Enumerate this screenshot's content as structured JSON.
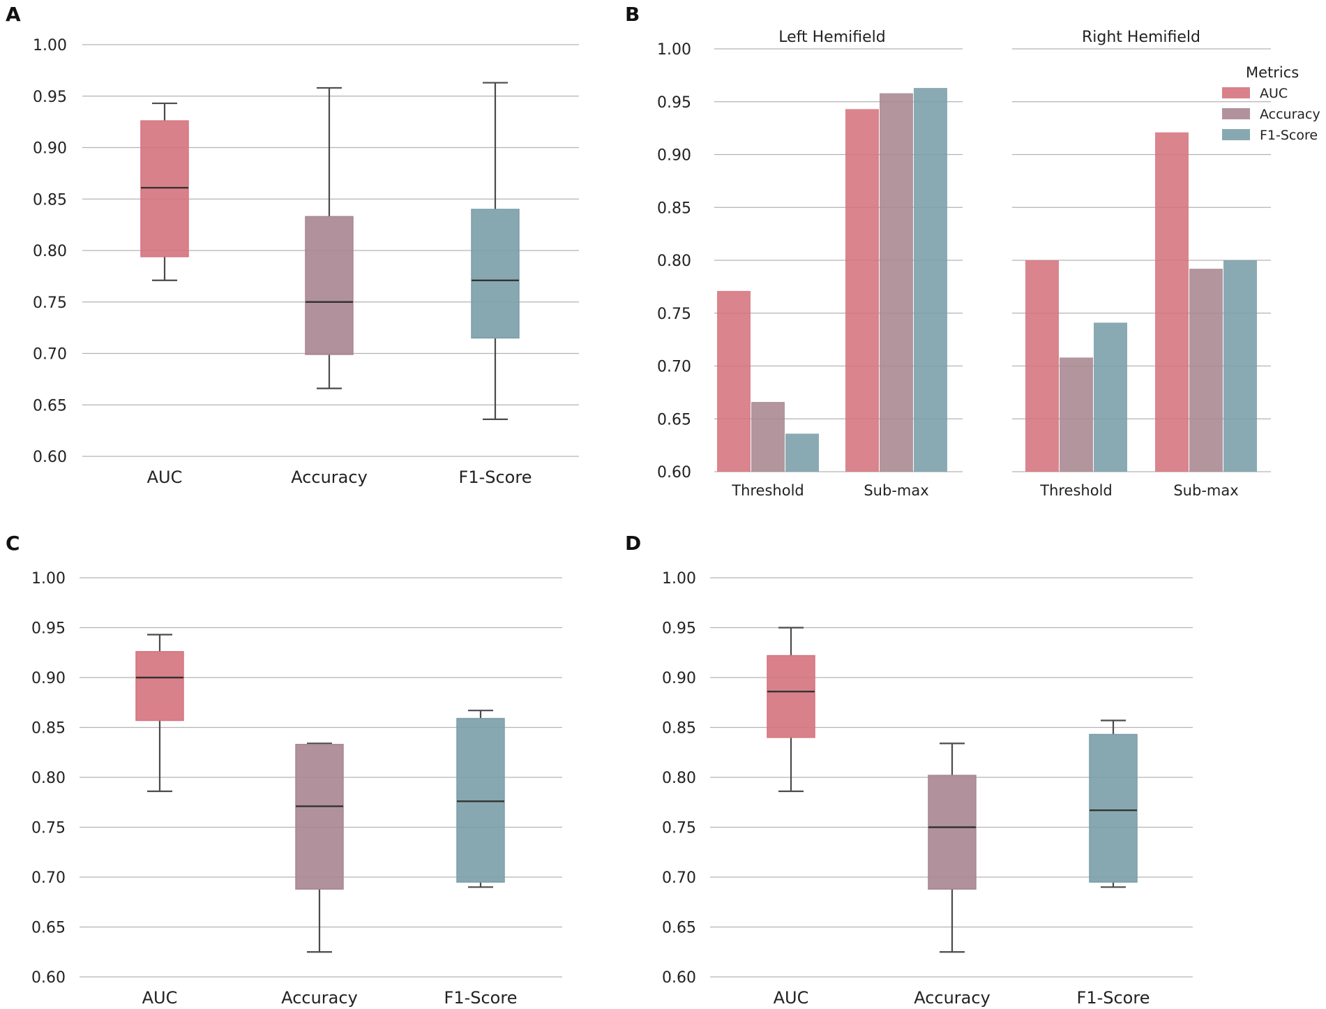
{
  "colors": {
    "auc": "#d5737e",
    "accuracy": "#a98691",
    "f1": "#7a9ea8"
  },
  "panels": [
    {
      "id": "A",
      "letter": "A",
      "type": "box",
      "ylim": [
        0.6,
        1.0
      ],
      "yticks": [
        "0.60",
        "0.65",
        "0.70",
        "0.75",
        "0.80",
        "0.85",
        "0.90",
        "0.95",
        "1.00"
      ],
      "yvalues": [
        0.6,
        0.65,
        0.7,
        0.75,
        0.8,
        0.85,
        0.9,
        0.95,
        1.0
      ],
      "categories": [
        "AUC",
        "Accuracy",
        "F1-Score"
      ],
      "boxes": [
        {
          "name": "AUC",
          "color_key": "auc",
          "whislo": 0.771,
          "q1": 0.794,
          "med": 0.861,
          "q3": 0.926,
          "whishi": 0.943
        },
        {
          "name": "Accuracy",
          "color_key": "accuracy",
          "whislo": 0.666,
          "q1": 0.699,
          "med": 0.75,
          "q3": 0.833,
          "whishi": 0.958
        },
        {
          "name": "F1-Score",
          "color_key": "f1",
          "whislo": 0.636,
          "q1": 0.715,
          "med": 0.771,
          "q3": 0.84,
          "whishi": 0.963
        }
      ]
    },
    {
      "id": "C",
      "letter": "C",
      "type": "box",
      "ylim": [
        0.6,
        1.0
      ],
      "yticks": [
        "0.60",
        "0.65",
        "0.70",
        "0.75",
        "0.80",
        "0.85",
        "0.90",
        "0.95",
        "1.00"
      ],
      "yvalues": [
        0.6,
        0.65,
        0.7,
        0.75,
        0.8,
        0.85,
        0.9,
        0.95,
        1.0
      ],
      "categories": [
        "AUC",
        "Accuracy",
        "F1-Score"
      ],
      "boxes": [
        {
          "name": "AUC",
          "color_key": "auc",
          "whislo": 0.786,
          "q1": 0.857,
          "med": 0.9,
          "q3": 0.926,
          "whishi": 0.943
        },
        {
          "name": "Accuracy",
          "color_key": "accuracy",
          "whislo": 0.625,
          "q1": 0.688,
          "med": 0.771,
          "q3": 0.833,
          "whishi": 0.834
        },
        {
          "name": "F1-Score",
          "color_key": "f1",
          "whislo": 0.69,
          "q1": 0.695,
          "med": 0.776,
          "q3": 0.859,
          "whishi": 0.867
        }
      ]
    },
    {
      "id": "D",
      "letter": "D",
      "type": "box",
      "ylim": [
        0.6,
        1.0
      ],
      "yticks": [
        "0.60",
        "0.65",
        "0.70",
        "0.75",
        "0.80",
        "0.85",
        "0.90",
        "0.95",
        "1.00"
      ],
      "yvalues": [
        0.6,
        0.65,
        0.7,
        0.75,
        0.8,
        0.85,
        0.9,
        0.95,
        1.0
      ],
      "categories": [
        "AUC",
        "Accuracy",
        "F1-Score"
      ],
      "boxes": [
        {
          "name": "AUC",
          "color_key": "auc",
          "whislo": 0.786,
          "q1": 0.84,
          "med": 0.886,
          "q3": 0.922,
          "whishi": 0.95
        },
        {
          "name": "Accuracy",
          "color_key": "accuracy",
          "whislo": 0.625,
          "q1": 0.688,
          "med": 0.75,
          "q3": 0.802,
          "whishi": 0.834
        },
        {
          "name": "F1-Score",
          "color_key": "f1",
          "whislo": 0.69,
          "q1": 0.695,
          "med": 0.767,
          "q3": 0.843,
          "whishi": 0.857
        }
      ]
    }
  ],
  "panel_b": {
    "letter": "B",
    "ylim": [
      0.6,
      1.0
    ],
    "yticks": [
      "0.60",
      "0.65",
      "0.70",
      "0.75",
      "0.80",
      "0.85",
      "0.90",
      "0.95",
      "1.00"
    ],
    "yvalues": [
      0.6,
      0.65,
      0.7,
      0.75,
      0.8,
      0.85,
      0.9,
      0.95,
      1.0
    ],
    "legend": {
      "title": "Metrics",
      "entries": [
        "AUC",
        "Accuracy",
        "F1-Score"
      ]
    },
    "facets": [
      {
        "title": "Left Hemifield",
        "groups": [
          {
            "label": "Threshold",
            "values": [
              0.771,
              0.666,
              0.636
            ]
          },
          {
            "label": "Sub-max",
            "values": [
              0.943,
              0.958,
              0.963
            ]
          }
        ]
      },
      {
        "title": "Right Hemifield",
        "groups": [
          {
            "label": "Threshold",
            "values": [
              0.8,
              0.708,
              0.741
            ]
          },
          {
            "label": "Sub-max",
            "values": [
              0.921,
              0.792,
              0.8
            ]
          }
        ]
      }
    ]
  },
  "chart_data": [
    {
      "type": "box",
      "panel": "A",
      "categories": [
        "AUC",
        "Accuracy",
        "F1-Score"
      ],
      "ylim": [
        0.6,
        1.0
      ],
      "series": [
        {
          "name": "AUC",
          "whislo": 0.771,
          "q1": 0.794,
          "med": 0.861,
          "q3": 0.926,
          "whishi": 0.943
        },
        {
          "name": "Accuracy",
          "whislo": 0.666,
          "q1": 0.699,
          "med": 0.75,
          "q3": 0.833,
          "whishi": 0.958
        },
        {
          "name": "F1-Score",
          "whislo": 0.636,
          "q1": 0.715,
          "med": 0.771,
          "q3": 0.84,
          "whishi": 0.963
        }
      ]
    },
    {
      "type": "bar",
      "panel": "B",
      "facets": [
        "Left Hemifield",
        "Right Hemifield"
      ],
      "categories": [
        "Threshold",
        "Sub-max"
      ],
      "ylim": [
        0.6,
        1.0
      ],
      "legend_title": "Metrics",
      "series": [
        {
          "name": "AUC",
          "left": [
            0.771,
            0.943
          ],
          "right": [
            0.8,
            0.921
          ]
        },
        {
          "name": "Accuracy",
          "left": [
            0.666,
            0.958
          ],
          "right": [
            0.708,
            0.792
          ]
        },
        {
          "name": "F1-Score",
          "left": [
            0.636,
            0.963
          ],
          "right": [
            0.741,
            0.8
          ]
        }
      ]
    },
    {
      "type": "box",
      "panel": "C",
      "categories": [
        "AUC",
        "Accuracy",
        "F1-Score"
      ],
      "ylim": [
        0.6,
        1.0
      ],
      "series": [
        {
          "name": "AUC",
          "whislo": 0.786,
          "q1": 0.857,
          "med": 0.9,
          "q3": 0.926,
          "whishi": 0.943
        },
        {
          "name": "Accuracy",
          "whislo": 0.625,
          "q1": 0.688,
          "med": 0.771,
          "q3": 0.833,
          "whishi": 0.834
        },
        {
          "name": "F1-Score",
          "whislo": 0.69,
          "q1": 0.695,
          "med": 0.776,
          "q3": 0.859,
          "whishi": 0.867
        }
      ]
    },
    {
      "type": "box",
      "panel": "D",
      "categories": [
        "AUC",
        "Accuracy",
        "F1-Score"
      ],
      "ylim": [
        0.6,
        1.0
      ],
      "series": [
        {
          "name": "AUC",
          "whislo": 0.786,
          "q1": 0.84,
          "med": 0.886,
          "q3": 0.922,
          "whishi": 0.95
        },
        {
          "name": "Accuracy",
          "whislo": 0.625,
          "q1": 0.688,
          "med": 0.75,
          "q3": 0.802,
          "whishi": 0.834
        },
        {
          "name": "F1-Score",
          "whislo": 0.69,
          "q1": 0.695,
          "med": 0.767,
          "q3": 0.843,
          "whishi": 0.857
        }
      ]
    }
  ]
}
